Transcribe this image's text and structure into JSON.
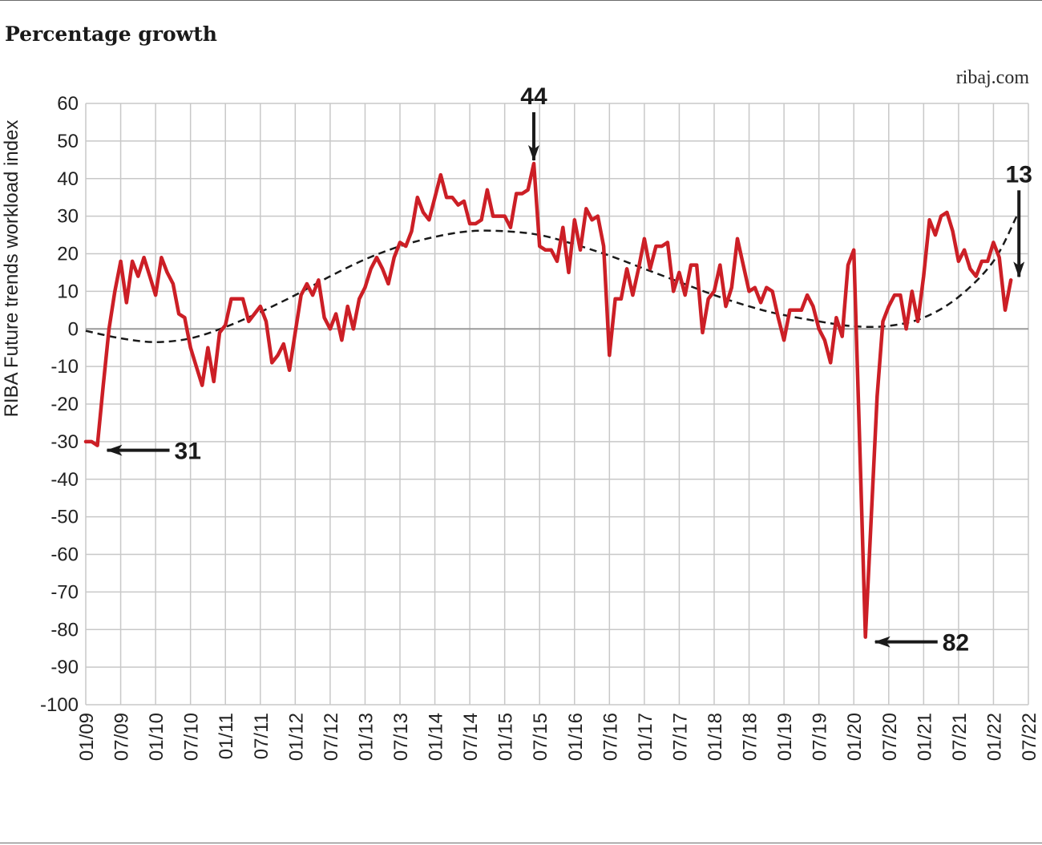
{
  "header": {
    "title": "Percentage growth",
    "source": "ribaj.com"
  },
  "colors": {
    "series": "#cc1f26",
    "trend": "#1a1a1a",
    "grid": "#c8c8c8",
    "zero_line": "#9a9a9a"
  },
  "chart_data": {
    "type": "line",
    "title": "Percentage growth",
    "ylabel": "RIBA Future trends workload index",
    "xlabel": "",
    "ylim": [
      -100,
      60
    ],
    "yticks": [
      60,
      50,
      40,
      30,
      20,
      10,
      0,
      -10,
      -20,
      -30,
      -40,
      -50,
      -60,
      -70,
      -80,
      -90,
      -100
    ],
    "xlim": [
      "2009-01",
      "2022-07"
    ],
    "xticks": [
      "01/09",
      "07/09",
      "01/10",
      "07/10",
      "01/11",
      "07/11",
      "01/12",
      "07/12",
      "01/13",
      "07/13",
      "01/14",
      "07/14",
      "01/15",
      "07/15",
      "01/16",
      "07/16",
      "01/17",
      "07/17",
      "01/18",
      "07/18",
      "01/19",
      "07/19",
      "01/20",
      "07/20",
      "01/21",
      "07/21",
      "01/22",
      "07/22"
    ],
    "grid": true,
    "legend": "none",
    "series": [
      {
        "values": [
          {
            "x": "2009-01",
            "y": -30
          },
          {
            "x": "2009-02",
            "y": -30
          },
          {
            "x": "2009-03",
            "y": -31
          },
          {
            "x": "2009-04",
            "y": -15
          },
          {
            "x": "2009-05",
            "y": 0
          },
          {
            "x": "2009-06",
            "y": 10
          },
          {
            "x": "2009-07",
            "y": 18
          },
          {
            "x": "2009-08",
            "y": 7
          },
          {
            "x": "2009-09",
            "y": 18
          },
          {
            "x": "2009-10",
            "y": 14
          },
          {
            "x": "2009-11",
            "y": 19
          },
          {
            "x": "2009-12",
            "y": 14
          },
          {
            "x": "2010-01",
            "y": 9
          },
          {
            "x": "2010-02",
            "y": 19
          },
          {
            "x": "2010-03",
            "y": 15
          },
          {
            "x": "2010-04",
            "y": 12
          },
          {
            "x": "2010-05",
            "y": 4
          },
          {
            "x": "2010-06",
            "y": 3
          },
          {
            "x": "2010-07",
            "y": -5
          },
          {
            "x": "2010-08",
            "y": -10
          },
          {
            "x": "2010-09",
            "y": -15
          },
          {
            "x": "2010-10",
            "y": -5
          },
          {
            "x": "2010-11",
            "y": -14
          },
          {
            "x": "2010-12",
            "y": -1
          },
          {
            "x": "2011-01",
            "y": 1
          },
          {
            "x": "2011-02",
            "y": 8
          },
          {
            "x": "2011-03",
            "y": 8
          },
          {
            "x": "2011-04",
            "y": 8
          },
          {
            "x": "2011-05",
            "y": 2
          },
          {
            "x": "2011-06",
            "y": 4
          },
          {
            "x": "2011-07",
            "y": 6
          },
          {
            "x": "2011-08",
            "y": 2
          },
          {
            "x": "2011-09",
            "y": -9
          },
          {
            "x": "2011-10",
            "y": -7
          },
          {
            "x": "2011-11",
            "y": -4
          },
          {
            "x": "2011-12",
            "y": -11
          },
          {
            "x": "2012-01",
            "y": -1
          },
          {
            "x": "2012-02",
            "y": 9
          },
          {
            "x": "2012-03",
            "y": 12
          },
          {
            "x": "2012-04",
            "y": 9
          },
          {
            "x": "2012-05",
            "y": 13
          },
          {
            "x": "2012-06",
            "y": 3
          },
          {
            "x": "2012-07",
            "y": 0
          },
          {
            "x": "2012-08",
            "y": 4
          },
          {
            "x": "2012-09",
            "y": -3
          },
          {
            "x": "2012-10",
            "y": 6
          },
          {
            "x": "2012-11",
            "y": 0
          },
          {
            "x": "2012-12",
            "y": 8
          },
          {
            "x": "2013-01",
            "y": 11
          },
          {
            "x": "2013-02",
            "y": 16
          },
          {
            "x": "2013-03",
            "y": 19
          },
          {
            "x": "2013-04",
            "y": 16
          },
          {
            "x": "2013-05",
            "y": 12
          },
          {
            "x": "2013-06",
            "y": 19
          },
          {
            "x": "2013-07",
            "y": 23
          },
          {
            "x": "2013-08",
            "y": 22
          },
          {
            "x": "2013-09",
            "y": 26
          },
          {
            "x": "2013-10",
            "y": 35
          },
          {
            "x": "2013-11",
            "y": 31
          },
          {
            "x": "2013-12",
            "y": 29
          },
          {
            "x": "2014-01",
            "y": 35
          },
          {
            "x": "2014-02",
            "y": 41
          },
          {
            "x": "2014-03",
            "y": 35
          },
          {
            "x": "2014-04",
            "y": 35
          },
          {
            "x": "2014-05",
            "y": 33
          },
          {
            "x": "2014-06",
            "y": 34
          },
          {
            "x": "2014-07",
            "y": 28
          },
          {
            "x": "2014-08",
            "y": 28
          },
          {
            "x": "2014-09",
            "y": 29
          },
          {
            "x": "2014-10",
            "y": 37
          },
          {
            "x": "2014-11",
            "y": 30
          },
          {
            "x": "2014-12",
            "y": 30
          },
          {
            "x": "2015-01",
            "y": 30
          },
          {
            "x": "2015-02",
            "y": 27
          },
          {
            "x": "2015-03",
            "y": 36
          },
          {
            "x": "2015-04",
            "y": 36
          },
          {
            "x": "2015-05",
            "y": 37
          },
          {
            "x": "2015-06",
            "y": 44
          },
          {
            "x": "2015-07",
            "y": 22
          },
          {
            "x": "2015-08",
            "y": 21
          },
          {
            "x": "2015-09",
            "y": 21
          },
          {
            "x": "2015-10",
            "y": 18
          },
          {
            "x": "2015-11",
            "y": 27
          },
          {
            "x": "2015-12",
            "y": 15
          },
          {
            "x": "2016-01",
            "y": 29
          },
          {
            "x": "2016-02",
            "y": 21
          },
          {
            "x": "2016-03",
            "y": 32
          },
          {
            "x": "2016-04",
            "y": 29
          },
          {
            "x": "2016-05",
            "y": 30
          },
          {
            "x": "2016-06",
            "y": 22
          },
          {
            "x": "2016-07",
            "y": -7
          },
          {
            "x": "2016-08",
            "y": 8
          },
          {
            "x": "2016-09",
            "y": 8
          },
          {
            "x": "2016-10",
            "y": 16
          },
          {
            "x": "2016-11",
            "y": 9
          },
          {
            "x": "2016-12",
            "y": 16
          },
          {
            "x": "2017-01",
            "y": 24
          },
          {
            "x": "2017-02",
            "y": 16
          },
          {
            "x": "2017-03",
            "y": 22
          },
          {
            "x": "2017-04",
            "y": 22
          },
          {
            "x": "2017-05",
            "y": 23
          },
          {
            "x": "2017-06",
            "y": 10
          },
          {
            "x": "2017-07",
            "y": 15
          },
          {
            "x": "2017-08",
            "y": 9
          },
          {
            "x": "2017-09",
            "y": 17
          },
          {
            "x": "2017-10",
            "y": 17
          },
          {
            "x": "2017-11",
            "y": -1
          },
          {
            "x": "2017-12",
            "y": 8
          },
          {
            "x": "2018-01",
            "y": 10
          },
          {
            "x": "2018-02",
            "y": 17
          },
          {
            "x": "2018-03",
            "y": 6
          },
          {
            "x": "2018-04",
            "y": 11
          },
          {
            "x": "2018-05",
            "y": 24
          },
          {
            "x": "2018-06",
            "y": 17
          },
          {
            "x": "2018-07",
            "y": 10
          },
          {
            "x": "2018-08",
            "y": 11
          },
          {
            "x": "2018-09",
            "y": 7
          },
          {
            "x": "2018-10",
            "y": 11
          },
          {
            "x": "2018-11",
            "y": 10
          },
          {
            "x": "2018-12",
            "y": 3
          },
          {
            "x": "2019-01",
            "y": -3
          },
          {
            "x": "2019-02",
            "y": 5
          },
          {
            "x": "2019-03",
            "y": 5
          },
          {
            "x": "2019-04",
            "y": 5
          },
          {
            "x": "2019-05",
            "y": 9
          },
          {
            "x": "2019-06",
            "y": 6
          },
          {
            "x": "2019-07",
            "y": 0
          },
          {
            "x": "2019-08",
            "y": -3
          },
          {
            "x": "2019-09",
            "y": -9
          },
          {
            "x": "2019-10",
            "y": 3
          },
          {
            "x": "2019-11",
            "y": -2
          },
          {
            "x": "2019-12",
            "y": 17
          },
          {
            "x": "2020-01",
            "y": 21
          },
          {
            "x": "2020-02",
            "y": -30
          },
          {
            "x": "2020-03",
            "y": -82
          },
          {
            "x": "2020-04",
            "y": -50
          },
          {
            "x": "2020-05",
            "y": -18
          },
          {
            "x": "2020-06",
            "y": 2
          },
          {
            "x": "2020-07",
            "y": 6
          },
          {
            "x": "2020-08",
            "y": 9
          },
          {
            "x": "2020-09",
            "y": 9
          },
          {
            "x": "2020-10",
            "y": 0
          },
          {
            "x": "2020-11",
            "y": 10
          },
          {
            "x": "2020-12",
            "y": 2
          },
          {
            "x": "2021-01",
            "y": 14
          },
          {
            "x": "2021-02",
            "y": 29
          },
          {
            "x": "2021-03",
            "y": 25
          },
          {
            "x": "2021-04",
            "y": 30
          },
          {
            "x": "2021-05",
            "y": 31
          },
          {
            "x": "2021-06",
            "y": 26
          },
          {
            "x": "2021-07",
            "y": 18
          },
          {
            "x": "2021-08",
            "y": 21
          },
          {
            "x": "2021-09",
            "y": 16
          },
          {
            "x": "2021-10",
            "y": 14
          },
          {
            "x": "2021-11",
            "y": 18
          },
          {
            "x": "2021-12",
            "y": 18
          },
          {
            "x": "2022-01",
            "y": 23
          },
          {
            "x": "2022-02",
            "y": 19
          },
          {
            "x": "2022-03",
            "y": 5
          },
          {
            "x": "2022-04",
            "y": 13
          }
        ]
      }
    ],
    "trend": [
      {
        "x": "2009-01",
        "y": -0.5
      },
      {
        "x": "2009-07",
        "y": -2.5
      },
      {
        "x": "2010-01",
        "y": -3.5
      },
      {
        "x": "2010-07",
        "y": -2.5
      },
      {
        "x": "2011-01",
        "y": 0.5
      },
      {
        "x": "2011-07",
        "y": 4.5
      },
      {
        "x": "2012-01",
        "y": 9
      },
      {
        "x": "2012-07",
        "y": 14
      },
      {
        "x": "2013-01",
        "y": 18.5
      },
      {
        "x": "2013-07",
        "y": 22
      },
      {
        "x": "2014-01",
        "y": 24.5
      },
      {
        "x": "2014-07",
        "y": 26
      },
      {
        "x": "2015-01",
        "y": 26
      },
      {
        "x": "2015-07",
        "y": 25
      },
      {
        "x": "2016-01",
        "y": 22.5
      },
      {
        "x": "2016-07",
        "y": 19.5
      },
      {
        "x": "2017-01",
        "y": 16
      },
      {
        "x": "2017-07",
        "y": 12.5
      },
      {
        "x": "2018-01",
        "y": 9
      },
      {
        "x": "2018-07",
        "y": 6
      },
      {
        "x": "2018-12",
        "y": 4
      },
      {
        "x": "2019-07",
        "y": 2
      },
      {
        "x": "2020-01",
        "y": 0.7
      },
      {
        "x": "2020-07",
        "y": 0.8
      },
      {
        "x": "2021-01",
        "y": 3
      },
      {
        "x": "2021-07",
        "y": 8.5
      },
      {
        "x": "2022-01",
        "y": 18
      },
      {
        "x": "2022-05",
        "y": 30
      }
    ],
    "annotations": [
      {
        "label": "31",
        "x": "2009-03",
        "y": -31
      },
      {
        "label": "44",
        "x": "2015-06",
        "y": 44
      },
      {
        "label": "82",
        "x": "2020-03",
        "y": -82
      },
      {
        "label": "13",
        "x": "2022-04",
        "y": 13
      }
    ]
  }
}
